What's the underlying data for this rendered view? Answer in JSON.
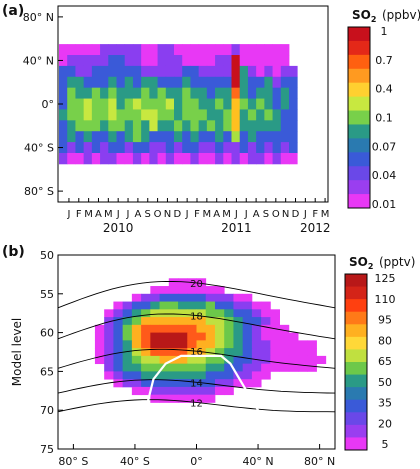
{
  "chart_data": [
    {
      "panel": "(a)",
      "type": "heatmap",
      "x_months": [
        "J",
        "F",
        "M",
        "A",
        "M",
        "J",
        "J",
        "A",
        "S",
        "O",
        "N",
        "D",
        "J",
        "F",
        "M",
        "A",
        "M",
        "J",
        "J",
        "A",
        "S",
        "O",
        "N",
        "D",
        "J",
        "F",
        "M"
      ],
      "x_years": [
        "2010",
        "2011",
        "2012"
      ],
      "y_ticks": [
        "80° N",
        "40° N",
        "0°",
        "40° S",
        "80° S"
      ],
      "y_tick_values": [
        80,
        40,
        0,
        -40,
        -80
      ],
      "ylim": [
        -90,
        90
      ],
      "lat_bands": [
        50,
        40,
        30,
        20,
        10,
        0,
        -10,
        -20,
        -30,
        -40,
        -50
      ],
      "colorbar": {
        "title": "SO",
        "subscript": "2",
        "unit": "(ppbv)",
        "ticks": [
          "1",
          "0.7",
          "0.4",
          "0.1",
          "0.07",
          "0.04",
          "0.01"
        ]
      },
      "rows": [
        "wwwwwvvvvvwwvvwwwwwwwvwwwwww",
        "wvvvvvbbvvwwvvvwwwwvvRwwwwww",
        "bbvvbbbbbbvvvvvbbvvvvRtvwvwvv",
        "bttbbbtbtbttbbbtbbbbbRtbbtvbb",
        "bgttgtgtttgtgttgttbttOtbttbtb",
        "bgglggltglgggltggttgtYgtgtbtb",
        "tgglgglgggllggtgggttgYtgtgtbb",
        "btgggtggtgtlttgtgtgtgYtttttbb",
        "btbtbbtbtgtbbbtbtbbtbLbtbbbbb",
        "bvbvbvbbvbbvvbvbbvvbvvbvbvbvb",
        "vwwvwvvwwvwvwvwwvwwvwvwvvwvww"
      ],
      "colors": {
        "R": "#c8101c",
        "O": "#ff6a1a",
        "Y": "#ffc020",
        "L": "#a8e040",
        "l": "#c8e840",
        "g": "#78d04a",
        "t": "#2a9a86",
        "b": "#3a5ad8",
        "v": "#8a3ef0",
        "w": "#e838f5"
      }
    },
    {
      "panel": "(b)",
      "type": "heatmap",
      "x_ticks": [
        "80° S",
        "40° S",
        "0°",
        "40° N",
        "80° N"
      ],
      "x_tick_values": [
        -80,
        -40,
        0,
        40,
        80
      ],
      "xlim": [
        -90,
        90
      ],
      "ylabel": "Model level",
      "y_ticks": [
        "50",
        "55",
        "60",
        "65",
        "70",
        "75"
      ],
      "y_tick_values": [
        50,
        55,
        60,
        65,
        70,
        75
      ],
      "ylim": [
        50,
        75
      ],
      "contour_labels": [
        "20",
        "18",
        "16",
        "14",
        "12"
      ],
      "contour_values": [
        20,
        18,
        16,
        14,
        12
      ],
      "colorbar": {
        "title": "SO",
        "subscript": "2",
        "unit": "(pptv)",
        "ticks": [
          "125",
          "110",
          "95",
          "80",
          "65",
          "50",
          "35",
          "20",
          "5"
        ]
      },
      "rows": [
        "..............................",
        "..............................",
        "..............................",
        "............wwww..............",
        "..........wwwwwwww............",
        "........wvvbbbbbvvvww.........",
        "......wvbbtggtttgbbvvww.......",
        ".....wvbtgllllllggtbbvww......",
        ".....vbtgYYYYYYYllgtbbvw......",
        "....wvbgYOOOOOOYYlgtbvwww.....",
        "....wvbgYORRRROOYlgtbvwwww....",
        "....wvbtYORRRROYYlgtbvvwwwww..",
        "....wvbtlYOOOOYYlgttbvvwwwww..",
        "....wvbtgllYYYllggtbbvvwwwwww.",
        ".....vbttgggggggttbbvvwwwwww..",
        ".....wvbbtttttttbbbvvww.......",
        "......wvvbbbbbbbbvvwww........",
        "........wwvvvvvvvww...........",
        "..........wwwwwww.............",
        "..............................",
        "..............................",
        "..............................",
        "..............................",
        "..............................",
        ".............................."
      ],
      "colors": {
        "R": "#b81818",
        "O": "#ff5a1a",
        "Y": "#ffb020",
        "l": "#c0e040",
        "g": "#6cc84a",
        "t": "#2a9a86",
        "b": "#3a5ad8",
        "v": "#8a3ef0",
        "w": "#e838f5"
      }
    }
  ]
}
